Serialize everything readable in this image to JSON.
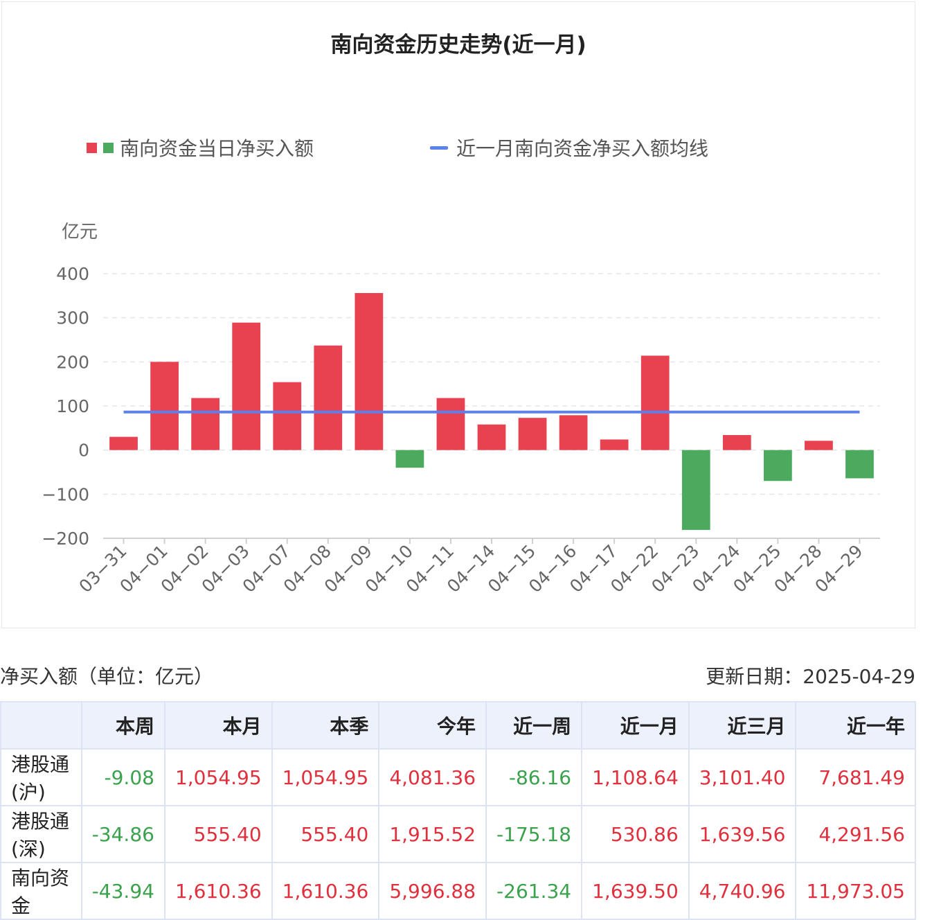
{
  "chart_title": "南向资金历史走势(近一月)",
  "legend": {
    "bar_label": "南向资金当日净买入额",
    "line_label": "近一月南向资金净买入额均线"
  },
  "colors": {
    "positive": "#e8414f",
    "negative": "#4baa5e",
    "average_line": "#5b80f0"
  },
  "chart_data": {
    "type": "bar",
    "title": "南向资金历史走势(近一月)",
    "ylabel": "亿元",
    "ylim": [
      -200,
      400
    ],
    "yticks": [
      400,
      300,
      200,
      100,
      0,
      -100,
      -200
    ],
    "ytick_labels": [
      "400",
      "300",
      "200",
      "100",
      "0",
      "−100",
      "−200"
    ],
    "grid": true,
    "legend_position": "top",
    "categories": [
      "03-31",
      "04-01",
      "04-02",
      "04-03",
      "04-07",
      "04-08",
      "04-09",
      "04-10",
      "04-11",
      "04-14",
      "04-15",
      "04-16",
      "04-17",
      "04-22",
      "04-23",
      "04-24",
      "04-25",
      "04-28",
      "04-29"
    ],
    "category_labels": [
      "03−31",
      "04−01",
      "04−02",
      "04−03",
      "04−07",
      "04−08",
      "04−09",
      "04−10",
      "04−11",
      "04−14",
      "04−15",
      "04−16",
      "04−17",
      "04−22",
      "04−23",
      "04−24",
      "04−25",
      "04−28",
      "04−29"
    ],
    "series": [
      {
        "name": "南向资金当日净买入额",
        "type": "bar",
        "values": [
          30,
          200,
          118,
          289,
          154,
          237,
          356,
          -40,
          118,
          58,
          73,
          79,
          24,
          214,
          -181,
          34,
          -70,
          21,
          -64
        ]
      },
      {
        "name": "近一月南向资金净买入额均线",
        "type": "line",
        "value": 86.29
      }
    ]
  },
  "table": {
    "caption": "净买入额（单位：亿元）",
    "update_date": "更新日期：2025-04-29",
    "columns": [
      "",
      "本周",
      "本月",
      "本季",
      "今年",
      "近一周",
      "近一月",
      "近三月",
      "近一年"
    ],
    "rows": [
      {
        "name": "港股通(沪)",
        "values": [
          "-9.08",
          "1,054.95",
          "1,054.95",
          "4,081.36",
          "-86.16",
          "1,108.64",
          "3,101.40",
          "7,681.49"
        ]
      },
      {
        "name": "港股通(深)",
        "values": [
          "-34.86",
          "555.40",
          "555.40",
          "1,915.52",
          "-175.18",
          "530.86",
          "1,639.56",
          "4,291.56"
        ]
      },
      {
        "name": "南向资金",
        "values": [
          "-43.94",
          "1,610.36",
          "1,610.36",
          "5,996.88",
          "-261.34",
          "1,639.50",
          "4,740.96",
          "11,973.05"
        ]
      }
    ]
  }
}
